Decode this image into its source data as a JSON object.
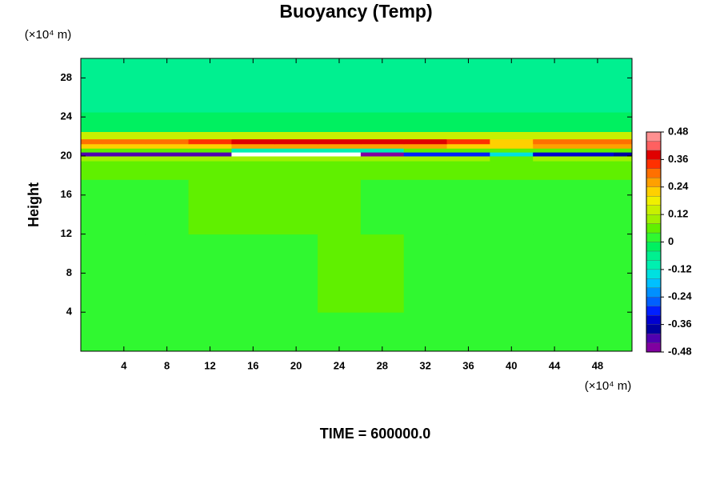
{
  "chart_data": {
    "type": "contour",
    "title": "Buoyancy (Temp)",
    "ylabel": "Height",
    "x_unit": "(×10⁴ m)",
    "y_unit": "(×10⁴ m)",
    "footer": "TIME = 600000.0",
    "xlim": [
      0,
      51.2
    ],
    "ylim": [
      0,
      30
    ],
    "xticks": [
      4,
      8,
      12,
      16,
      20,
      24,
      28,
      32,
      36,
      40,
      44,
      48
    ],
    "yticks": [
      4,
      8,
      12,
      16,
      20,
      24,
      28
    ],
    "x": [
      0,
      4,
      8,
      12,
      16,
      20,
      24,
      28,
      32,
      36,
      40,
      44,
      48,
      51
    ],
    "y": [
      0,
      8,
      16,
      19.2,
      19.8,
      20.2,
      20.6,
      21.0,
      21.5,
      22.0,
      23,
      26,
      30
    ],
    "z": [
      [
        0.02,
        0.02,
        0.02,
        0.02,
        0.02,
        0.02,
        0.02,
        0.02,
        0.02,
        0.02,
        0.02,
        0.02,
        0.02,
        0.02
      ],
      [
        0.02,
        0.02,
        0.02,
        0.02,
        0.03,
        0.03,
        0.05,
        0.05,
        0.03,
        0.02,
        0.02,
        0.02,
        0.02,
        0.02
      ],
      [
        0.03,
        0.03,
        0.03,
        0.05,
        0.05,
        0.05,
        0.05,
        0.03,
        0.03,
        0.03,
        0.03,
        0.03,
        0.03,
        0.03
      ],
      [
        0.06,
        0.06,
        0.06,
        0.06,
        0.06,
        0.06,
        0.06,
        0.06,
        0.06,
        0.06,
        0.06,
        0.06,
        0.06,
        0.06
      ],
      [
        0.1,
        0.1,
        0.1,
        0.1,
        0.1,
        0.1,
        0.1,
        0.1,
        0.1,
        0.1,
        0.06,
        0.1,
        0.1,
        0.1
      ],
      [
        -0.4,
        -0.4,
        -0.4,
        -0.42,
        -0.5,
        -0.5,
        -0.5,
        -0.45,
        -0.3,
        -0.3,
        -0.15,
        -0.35,
        -0.35,
        -0.38
      ],
      [
        0.05,
        0.05,
        0.05,
        0.05,
        -0.1,
        -0.1,
        -0.1,
        -0.1,
        0.05,
        0.05,
        0.05,
        0.05,
        0.05,
        0.05
      ],
      [
        0.2,
        0.2,
        0.2,
        0.22,
        0.25,
        0.25,
        0.25,
        0.25,
        0.25,
        0.2,
        0.2,
        0.25,
        0.25,
        0.25
      ],
      [
        0.3,
        0.3,
        0.3,
        0.34,
        0.38,
        0.38,
        0.38,
        0.38,
        0.38,
        0.34,
        0.2,
        0.3,
        0.3,
        0.3
      ],
      [
        0.12,
        0.12,
        0.12,
        0.12,
        0.12,
        0.12,
        0.12,
        0.12,
        0.12,
        0.12,
        0.12,
        0.12,
        0.12,
        0.12
      ],
      [
        -0.04,
        -0.04,
        -0.04,
        -0.04,
        -0.04,
        -0.04,
        -0.04,
        -0.04,
        -0.04,
        -0.04,
        -0.04,
        -0.04,
        -0.04,
        -0.04
      ],
      [
        -0.08,
        -0.08,
        -0.08,
        -0.08,
        -0.08,
        -0.08,
        -0.08,
        -0.08,
        -0.08,
        -0.08,
        -0.08,
        -0.08,
        -0.08,
        -0.08
      ],
      [
        -0.08,
        -0.08,
        -0.08,
        -0.08,
        -0.08,
        -0.08,
        -0.08,
        -0.08,
        -0.08,
        -0.08,
        -0.08,
        -0.08,
        -0.08,
        -0.08
      ]
    ],
    "clim": [
      -0.48,
      0.48
    ],
    "cticks": [
      -0.48,
      -0.36,
      -0.24,
      -0.12,
      0,
      0.12,
      0.24,
      0.36,
      0.48
    ],
    "colors": [
      "#8000a0",
      "#5000b0",
      "#0000a0",
      "#0000d0",
      "#0020ff",
      "#0060ff",
      "#0090ff",
      "#00c0ff",
      "#00e0e0",
      "#00f0b0",
      "#00f090",
      "#00f060",
      "#30f830",
      "#60f000",
      "#a0f000",
      "#c8f000",
      "#f0f000",
      "#ffd000",
      "#ffa000",
      "#ff7000",
      "#ff3000",
      "#e00000",
      "#ff6060",
      "#ff9090"
    ]
  }
}
